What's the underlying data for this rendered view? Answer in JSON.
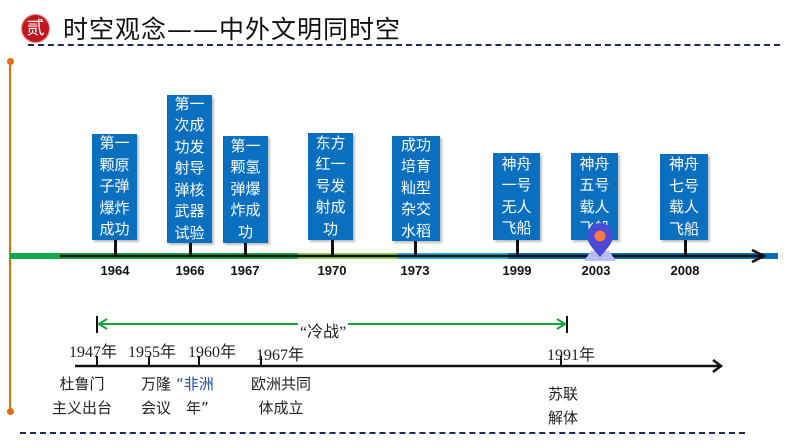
{
  "header": {
    "badge": "贰",
    "title": "时空观念——中外文明同时空"
  },
  "colors": {
    "box": "#0a6fbe",
    "badge": "#c0161c",
    "cold_war_arrow": "#1aa33b",
    "side_line": "#e46c0a",
    "dash": "#1f2a5c"
  },
  "china_timeline": {
    "events": [
      {
        "year": "1964",
        "text": "第一颗原子弹爆炸成功"
      },
      {
        "year": "1966",
        "text": "第一次成功发射导弹核武器试验"
      },
      {
        "year": "1967",
        "text": "第一颗氢弹爆炸成功"
      },
      {
        "year": "1970",
        "text": "东方红一号发射成功"
      },
      {
        "year": "1973",
        "text": "成功培育籼型杂交水稻"
      },
      {
        "year": "1999",
        "text": "神舟一号无人飞船"
      },
      {
        "year": "2003",
        "text": "神舟五号载人飞船"
      },
      {
        "year": "2008",
        "text": "神舟七号载人飞船"
      }
    ],
    "marker_icon": "location-pin-icon"
  },
  "world_timeline": {
    "cold_war_label": "“冷战”",
    "years": [
      "1947年",
      "1955年",
      "1960年",
      "1967年",
      "1991年"
    ],
    "events": [
      {
        "line1": "杜鲁门",
        "line2": "主义出台"
      },
      {
        "line1": "万隆",
        "line2": "会议"
      },
      {
        "line1": "“非洲",
        "line2": "年”"
      },
      {
        "line1": "欧洲共同",
        "line2": "体成立"
      },
      {
        "line1": "苏联",
        "line2": "解体"
      }
    ]
  }
}
